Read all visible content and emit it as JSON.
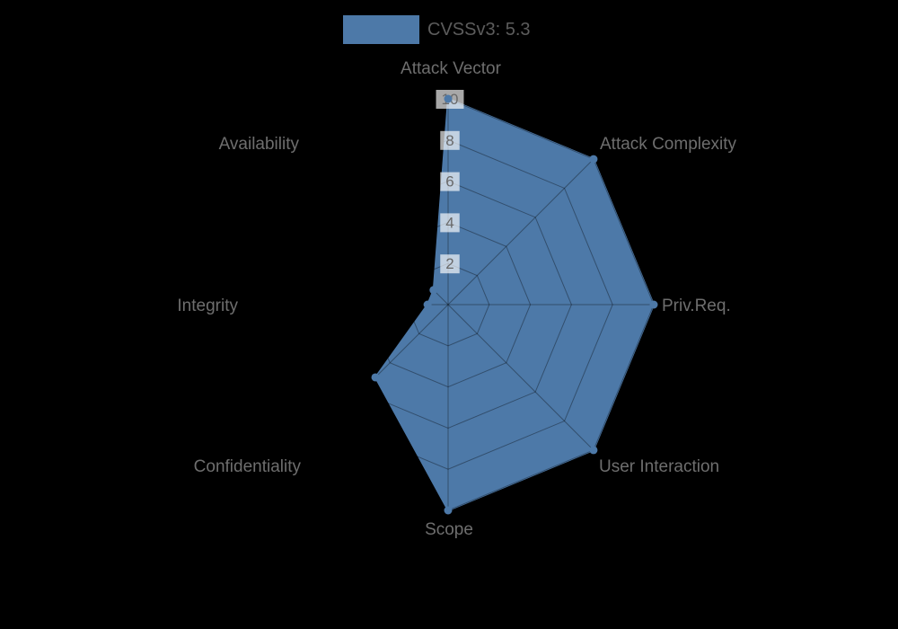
{
  "legend": {
    "label": "CVSSv3: 5.3"
  },
  "chart_data": {
    "type": "radar",
    "title": "",
    "legend_entries": [
      "CVSSv3: 5.3"
    ],
    "legend_position": "top-center",
    "axes": [
      {
        "label": "Attack Vector",
        "value": 10
      },
      {
        "label": "Attack Complexity",
        "value": 10
      },
      {
        "label": "Priv.Req.",
        "value": 10
      },
      {
        "label": "User Interaction",
        "value": 10
      },
      {
        "label": "Scope",
        "value": 10
      },
      {
        "label": "Confidentiality",
        "value": 5
      },
      {
        "label": "Integrity",
        "value": 1
      },
      {
        "label": "Availability",
        "value": 1
      }
    ],
    "series": [
      {
        "name": "CVSSv3: 5.3",
        "values": [
          10,
          10,
          10,
          10,
          10,
          5,
          1,
          1
        ]
      }
    ],
    "ticks": [
      2,
      4,
      6,
      8,
      10
    ],
    "range": [
      0,
      10
    ],
    "grid": "on",
    "colors": {
      "series": "#4d79a8",
      "axis_label": "#6e6e6e",
      "tick_text": "#696969",
      "legend_text": "#5c5c5c",
      "tick_backdrop": "rgba(255,255,255,0.66)",
      "grid_line": "rgba(0,0,0,0.35)",
      "background": "#000000"
    }
  }
}
